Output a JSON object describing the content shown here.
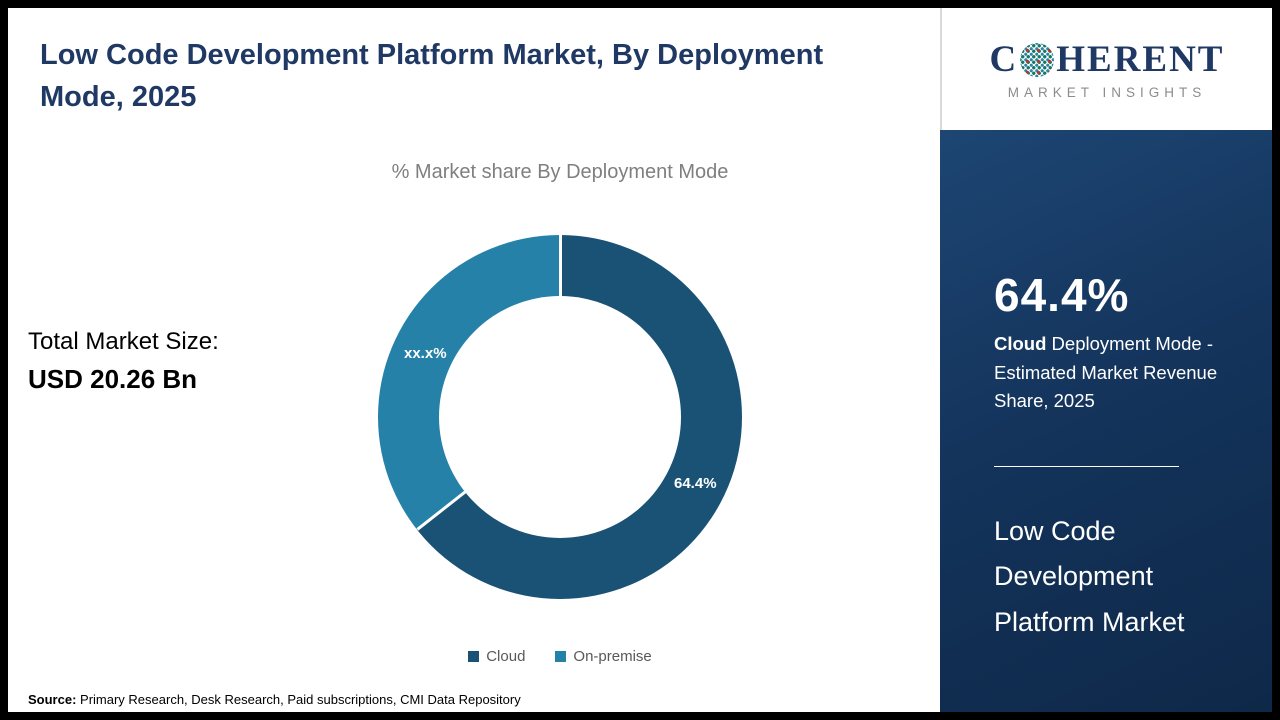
{
  "page": {
    "title": "Low Code Development Platform Market, By Deployment Mode, 2025",
    "source_label": "Source:",
    "source_text": " Primary Research, Desk Research, Paid subscriptions, CMI Data Repository"
  },
  "stats": {
    "total_label": "Total Market Size:",
    "total_value": "USD 20.26 Bn"
  },
  "chart_data": {
    "type": "pie",
    "donut": true,
    "title": "% Market share By Deployment Mode",
    "categories": [
      "Cloud",
      "On-premise"
    ],
    "values": [
      64.4,
      35.6
    ],
    "slice_labels": [
      "64.4%",
      "xx.x%"
    ],
    "colors": [
      "#1a5276",
      "#2581a8"
    ],
    "legend_position": "bottom"
  },
  "sidebar": {
    "logo": {
      "pre": "C",
      "post": "HERENT",
      "subtitle": "MARKET INSIGHTS"
    },
    "stat_value": "64.4%",
    "stat_desc_bold": "Cloud",
    "stat_desc_rest": " Deployment Mode - Estimated Market Revenue Share, 2025",
    "market_name": "Low Code Development Platform Market"
  }
}
